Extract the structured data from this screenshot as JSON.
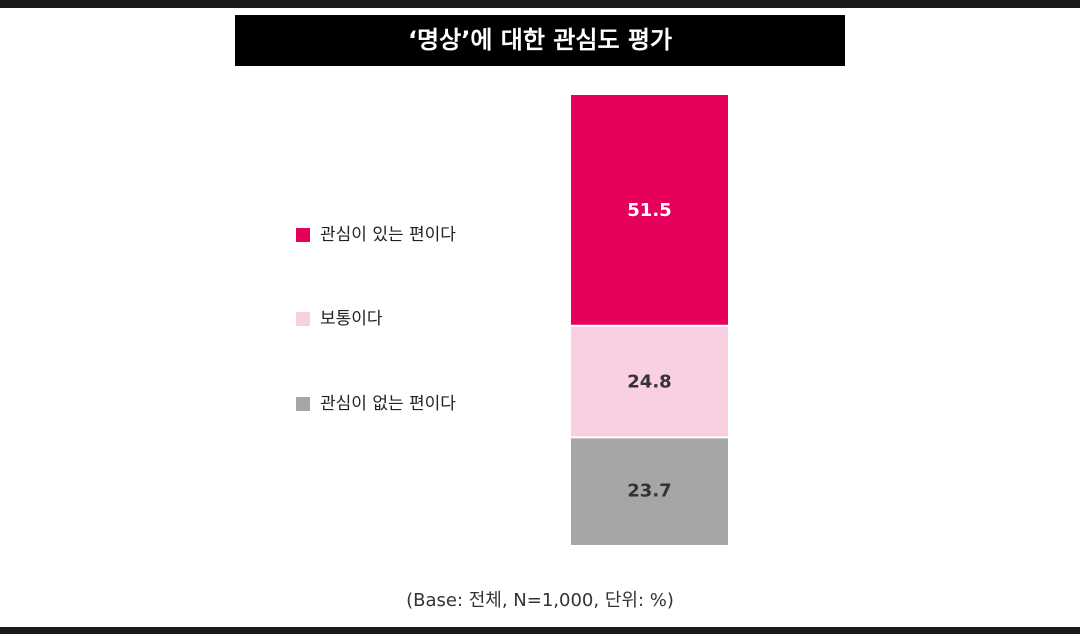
{
  "chart_data": {
    "type": "stacked-bar",
    "title": "‘명상’에 대한 관심도 평가",
    "categories": [
      null
    ],
    "series": [
      {
        "name": "관심이 있는 편이다",
        "color": "#e6005c",
        "values": [
          51.5
        ]
      },
      {
        "name": "보통이다",
        "color": "#f9d0e1",
        "values": [
          24.8
        ]
      },
      {
        "name": "관심이 없는 편이다",
        "color": "#a6a6a6",
        "values": [
          23.7
        ]
      }
    ],
    "legend": "left",
    "footnote": "(Base: 전체, N=1,000, 단위: %)"
  }
}
